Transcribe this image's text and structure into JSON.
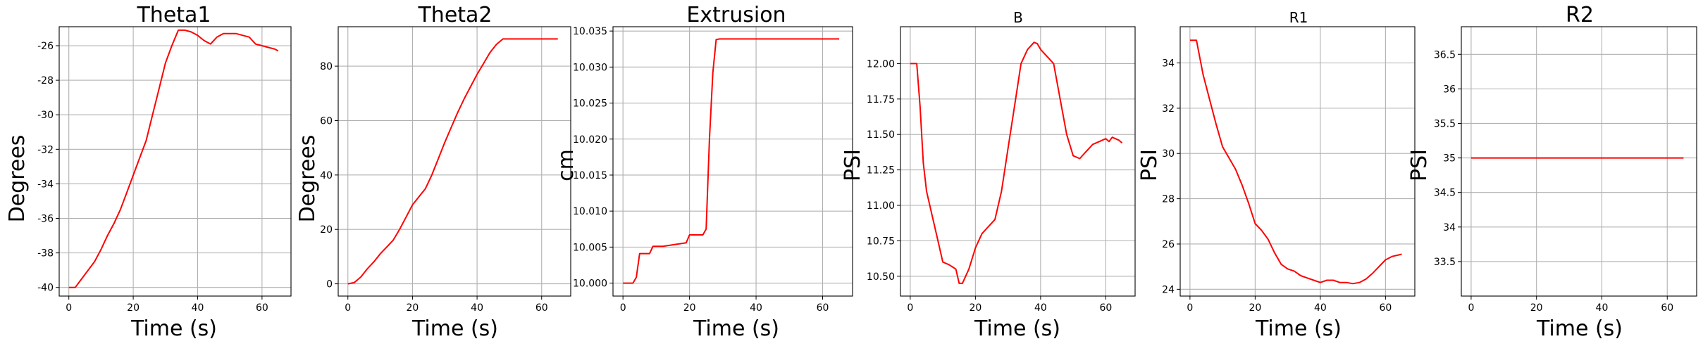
{
  "style": {
    "line_color": "#ff0000",
    "grid": true
  },
  "chart_data": [
    {
      "type": "line",
      "title": "Theta1",
      "xlabel": "Time (s)",
      "ylabel": "Degrees",
      "xlim": [
        -3,
        69
      ],
      "ylim": [
        -40.5,
        -24.9
      ],
      "xticks": [
        0,
        20,
        40,
        60
      ],
      "yticks": [
        -40,
        -38,
        -36,
        -34,
        -32,
        -30,
        -28,
        -26
      ],
      "series": [
        {
          "x": [
            0,
            2,
            4,
            6,
            8,
            10,
            12,
            14,
            16,
            18,
            20,
            22,
            24,
            26,
            28,
            30,
            32,
            34,
            36,
            38,
            40,
            42,
            44,
            46,
            48,
            50,
            52,
            54,
            56,
            58,
            60,
            62,
            64,
            65
          ],
          "y": [
            -40,
            -40,
            -39.5,
            -39,
            -38.5,
            -37.8,
            -37,
            -36.3,
            -35.5,
            -34.5,
            -33.5,
            -32.5,
            -31.5,
            -30,
            -28.5,
            -27,
            -26,
            -25.1,
            -25.1,
            -25.2,
            -25.4,
            -25.7,
            -25.9,
            -25.5,
            -25.3,
            -25.3,
            -25.3,
            -25.4,
            -25.5,
            -25.9,
            -26,
            -26.1,
            -26.2,
            -26.3
          ]
        }
      ]
    },
    {
      "type": "line",
      "title": "Theta2",
      "xlabel": "Time (s)",
      "ylabel": "Degrees",
      "xlim": [
        -3,
        69
      ],
      "ylim": [
        -4.5,
        94.5
      ],
      "xticks": [
        0,
        20,
        40,
        60
      ],
      "yticks": [
        0,
        20,
        40,
        60,
        80
      ],
      "series": [
        {
          "x": [
            0,
            2,
            4,
            6,
            8,
            10,
            12,
            14,
            16,
            18,
            20,
            22,
            24,
            26,
            28,
            30,
            32,
            34,
            36,
            38,
            40,
            42,
            44,
            46,
            48,
            50,
            55,
            60,
            65
          ],
          "y": [
            0,
            0.5,
            2.5,
            5.5,
            8,
            11,
            13.5,
            16,
            20,
            24.5,
            29,
            32,
            35,
            40,
            46,
            52,
            57.5,
            63,
            68,
            72.5,
            77,
            81,
            85,
            88,
            90,
            90,
            90,
            90,
            90
          ]
        }
      ]
    },
    {
      "type": "line",
      "title": "Extrusion",
      "xlabel": "Time (s)",
      "ylabel": "cm",
      "xlim": [
        -3,
        69
      ],
      "ylim": [
        9.9982,
        10.0356
      ],
      "xticks": [
        0,
        20,
        40,
        60
      ],
      "yticks": [
        10.0,
        10.005,
        10.01,
        10.015,
        10.02,
        10.025,
        10.03,
        10.035
      ],
      "ytick_labels": [
        "10.000",
        "10.005",
        "10.010",
        "10.015",
        "10.020",
        "10.025",
        "10.030",
        "10.035"
      ],
      "series": [
        {
          "x": [
            0,
            3,
            4,
            5,
            8,
            9,
            12,
            19,
            20,
            24,
            25,
            26,
            27,
            28,
            29,
            30,
            40,
            50,
            65
          ],
          "y": [
            10.0,
            10.0,
            10.0008,
            10.0041,
            10.0041,
            10.0051,
            10.0051,
            10.0056,
            10.0067,
            10.0067,
            10.0075,
            10.02,
            10.0292,
            10.0338,
            10.0339,
            10.0339,
            10.0339,
            10.0339,
            10.0339
          ]
        }
      ]
    },
    {
      "type": "line",
      "title": "B",
      "xlabel": "Time (s)",
      "ylabel": "PSI",
      "xlim": [
        -3,
        69
      ],
      "ylim": [
        10.36,
        12.26
      ],
      "xticks": [
        0,
        20,
        40,
        60
      ],
      "yticks": [
        10.5,
        10.75,
        11.0,
        11.25,
        11.5,
        11.75,
        12.0
      ],
      "ytick_labels": [
        "10.50",
        "10.75",
        "11.00",
        "11.25",
        "11.50",
        "11.75",
        "12.00"
      ],
      "series": [
        {
          "x": [
            0,
            2,
            3,
            4,
            5,
            6,
            8,
            10,
            12,
            14,
            15,
            16,
            18,
            20,
            22,
            24,
            26,
            28,
            30,
            32,
            34,
            36,
            38,
            39,
            40,
            42,
            44,
            46,
            48,
            50,
            52,
            54,
            56,
            58,
            60,
            61,
            62,
            64,
            65
          ],
          "y": [
            12.0,
            12.0,
            11.7,
            11.3,
            11.1,
            11.0,
            10.8,
            10.6,
            10.58,
            10.55,
            10.45,
            10.45,
            10.55,
            10.7,
            10.8,
            10.85,
            10.9,
            11.1,
            11.4,
            11.7,
            12.0,
            12.1,
            12.15,
            12.14,
            12.1,
            12.05,
            12.0,
            11.75,
            11.5,
            11.35,
            11.33,
            11.38,
            11.43,
            11.45,
            11.47,
            11.45,
            11.48,
            11.46,
            11.44
          ]
        }
      ]
    },
    {
      "type": "line",
      "title": "R1",
      "xlabel": "Time (s)",
      "ylabel": "PSI",
      "xlim": [
        -3,
        69
      ],
      "ylim": [
        23.7,
        35.6
      ],
      "xticks": [
        0,
        20,
        40,
        60
      ],
      "yticks": [
        24,
        26,
        28,
        30,
        32,
        34
      ],
      "series": [
        {
          "x": [
            0,
            2,
            4,
            6,
            8,
            10,
            12,
            14,
            16,
            18,
            20,
            22,
            24,
            26,
            28,
            30,
            32,
            34,
            36,
            38,
            40,
            42,
            44,
            46,
            48,
            50,
            52,
            54,
            56,
            58,
            60,
            62,
            65
          ],
          "y": [
            35,
            35,
            33.5,
            32.4,
            31.3,
            30.3,
            29.8,
            29.3,
            28.6,
            27.8,
            26.9,
            26.6,
            26.2,
            25.6,
            25.1,
            24.9,
            24.8,
            24.6,
            24.5,
            24.4,
            24.3,
            24.4,
            24.4,
            24.3,
            24.3,
            24.25,
            24.3,
            24.45,
            24.7,
            25.0,
            25.3,
            25.45,
            25.55
          ]
        }
      ]
    },
    {
      "type": "line",
      "title": "R2",
      "xlabel": "Time (s)",
      "ylabel": "PSI",
      "xlim": [
        -3,
        69
      ],
      "ylim": [
        33.0,
        36.9
      ],
      "xticks": [
        0,
        20,
        40,
        60
      ],
      "yticks": [
        33.5,
        34.0,
        34.5,
        35.0,
        35.5,
        36.0,
        36.5
      ],
      "series": [
        {
          "x": [
            0,
            65
          ],
          "y": [
            35.0,
            35.0
          ]
        }
      ]
    }
  ]
}
